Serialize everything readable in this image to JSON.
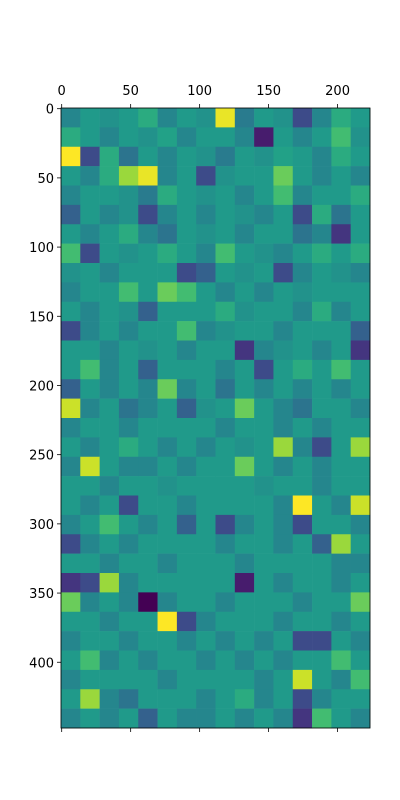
{
  "chart_data": {
    "type": "heatmap",
    "cmap": "viridis",
    "xlim": [
      -0.5,
      223.5
    ],
    "ylim": [
      447.5,
      -0.5
    ],
    "xticks": [
      0,
      50,
      100,
      150,
      200
    ],
    "yticks": [
      0,
      50,
      100,
      150,
      200,
      250,
      300,
      350,
      400
    ],
    "z": [
      [
        0.45,
        0.5,
        0.48,
        0.5,
        0.55,
        0.45,
        0.5,
        0.48,
        0.78,
        0.42,
        0.5,
        0.48,
        0.3,
        0.45,
        0.55,
        0.5
      ],
      [
        0.55,
        0.5,
        0.45,
        0.5,
        0.48,
        0.52,
        0.45,
        0.5,
        0.5,
        0.45,
        0.2,
        0.5,
        0.45,
        0.5,
        0.6,
        0.48
      ],
      [
        0.8,
        0.3,
        0.55,
        0.4,
        0.5,
        0.45,
        0.5,
        0.48,
        0.42,
        0.5,
        0.48,
        0.52,
        0.5,
        0.45,
        0.55,
        0.5
      ],
      [
        0.5,
        0.45,
        0.55,
        0.7,
        0.78,
        0.45,
        0.5,
        0.3,
        0.48,
        0.5,
        0.5,
        0.65,
        0.5,
        0.45,
        0.5,
        0.45
      ],
      [
        0.45,
        0.5,
        0.5,
        0.48,
        0.42,
        0.55,
        0.5,
        0.48,
        0.5,
        0.45,
        0.5,
        0.6,
        0.45,
        0.5,
        0.5,
        0.55
      ],
      [
        0.35,
        0.5,
        0.45,
        0.48,
        0.3,
        0.45,
        0.5,
        0.45,
        0.5,
        0.48,
        0.45,
        0.5,
        0.3,
        0.55,
        0.4,
        0.5
      ],
      [
        0.5,
        0.45,
        0.5,
        0.55,
        0.45,
        0.4,
        0.5,
        0.48,
        0.5,
        0.45,
        0.5,
        0.5,
        0.4,
        0.45,
        0.25,
        0.5
      ],
      [
        0.6,
        0.3,
        0.5,
        0.48,
        0.5,
        0.55,
        0.5,
        0.45,
        0.6,
        0.5,
        0.48,
        0.45,
        0.5,
        0.55,
        0.5,
        0.55
      ],
      [
        0.48,
        0.5,
        0.45,
        0.5,
        0.5,
        0.5,
        0.3,
        0.35,
        0.5,
        0.48,
        0.5,
        0.3,
        0.45,
        0.5,
        0.48,
        0.45
      ],
      [
        0.45,
        0.5,
        0.5,
        0.6,
        0.5,
        0.65,
        0.6,
        0.5,
        0.45,
        0.5,
        0.45,
        0.5,
        0.48,
        0.5,
        0.5,
        0.5
      ],
      [
        0.5,
        0.45,
        0.5,
        0.48,
        0.35,
        0.5,
        0.5,
        0.5,
        0.55,
        0.48,
        0.5,
        0.5,
        0.45,
        0.55,
        0.45,
        0.5
      ],
      [
        0.3,
        0.45,
        0.5,
        0.45,
        0.5,
        0.5,
        0.6,
        0.45,
        0.48,
        0.5,
        0.5,
        0.45,
        0.5,
        0.5,
        0.5,
        0.35
      ],
      [
        0.5,
        0.5,
        0.45,
        0.5,
        0.48,
        0.5,
        0.45,
        0.5,
        0.5,
        0.25,
        0.45,
        0.48,
        0.5,
        0.45,
        0.5,
        0.25
      ],
      [
        0.5,
        0.6,
        0.45,
        0.5,
        0.35,
        0.5,
        0.5,
        0.5,
        0.45,
        0.5,
        0.3,
        0.5,
        0.55,
        0.5,
        0.6,
        0.5
      ],
      [
        0.35,
        0.5,
        0.45,
        0.5,
        0.45,
        0.65,
        0.45,
        0.5,
        0.4,
        0.5,
        0.45,
        0.5,
        0.45,
        0.5,
        0.45,
        0.5
      ],
      [
        0.75,
        0.45,
        0.5,
        0.4,
        0.45,
        0.5,
        0.35,
        0.48,
        0.5,
        0.65,
        0.5,
        0.45,
        0.4,
        0.5,
        0.5,
        0.45
      ],
      [
        0.45,
        0.5,
        0.5,
        0.45,
        0.5,
        0.5,
        0.5,
        0.5,
        0.45,
        0.5,
        0.5,
        0.45,
        0.5,
        0.45,
        0.5,
        0.5
      ],
      [
        0.5,
        0.45,
        0.5,
        0.55,
        0.5,
        0.45,
        0.5,
        0.45,
        0.5,
        0.48,
        0.5,
        0.7,
        0.45,
        0.3,
        0.5,
        0.7
      ],
      [
        0.45,
        0.75,
        0.5,
        0.45,
        0.45,
        0.5,
        0.45,
        0.5,
        0.5,
        0.65,
        0.5,
        0.45,
        0.5,
        0.45,
        0.5,
        0.5
      ],
      [
        0.5,
        0.5,
        0.45,
        0.5,
        0.5,
        0.48,
        0.5,
        0.5,
        0.5,
        0.5,
        0.48,
        0.5,
        0.5,
        0.45,
        0.5,
        0.5
      ],
      [
        0.5,
        0.45,
        0.5,
        0.3,
        0.5,
        0.5,
        0.45,
        0.5,
        0.5,
        0.5,
        0.5,
        0.45,
        0.8,
        0.5,
        0.45,
        0.75
      ],
      [
        0.45,
        0.5,
        0.6,
        0.5,
        0.45,
        0.5,
        0.35,
        0.5,
        0.3,
        0.45,
        0.5,
        0.45,
        0.3,
        0.5,
        0.5,
        0.45
      ],
      [
        0.3,
        0.45,
        0.5,
        0.45,
        0.5,
        0.5,
        0.5,
        0.5,
        0.45,
        0.5,
        0.5,
        0.45,
        0.5,
        0.35,
        0.7,
        0.5
      ],
      [
        0.5,
        0.5,
        0.45,
        0.5,
        0.5,
        0.45,
        0.5,
        0.5,
        0.5,
        0.45,
        0.5,
        0.5,
        0.5,
        0.5,
        0.45,
        0.45
      ],
      [
        0.25,
        0.3,
        0.7,
        0.45,
        0.5,
        0.5,
        0.5,
        0.5,
        0.5,
        0.2,
        0.5,
        0.45,
        0.5,
        0.5,
        0.45,
        0.5
      ],
      [
        0.65,
        0.45,
        0.5,
        0.45,
        0.15,
        0.45,
        0.5,
        0.5,
        0.45,
        0.5,
        0.5,
        0.5,
        0.45,
        0.5,
        0.5,
        0.65
      ],
      [
        0.5,
        0.5,
        0.45,
        0.5,
        0.5,
        0.8,
        0.3,
        0.45,
        0.5,
        0.5,
        0.5,
        0.45,
        0.5,
        0.5,
        0.45,
        0.5
      ],
      [
        0.45,
        0.5,
        0.5,
        0.45,
        0.5,
        0.5,
        0.45,
        0.5,
        0.45,
        0.5,
        0.45,
        0.5,
        0.3,
        0.3,
        0.5,
        0.45
      ],
      [
        0.5,
        0.6,
        0.45,
        0.5,
        0.45,
        0.5,
        0.5,
        0.45,
        0.5,
        0.45,
        0.5,
        0.45,
        0.5,
        0.5,
        0.6,
        0.5
      ],
      [
        0.45,
        0.5,
        0.5,
        0.5,
        0.5,
        0.45,
        0.5,
        0.5,
        0.5,
        0.5,
        0.45,
        0.5,
        0.75,
        0.5,
        0.45,
        0.6
      ],
      [
        0.5,
        0.7,
        0.45,
        0.4,
        0.5,
        0.5,
        0.5,
        0.45,
        0.5,
        0.55,
        0.45,
        0.5,
        0.3,
        0.45,
        0.5,
        0.5
      ],
      [
        0.45,
        0.5,
        0.45,
        0.5,
        0.35,
        0.5,
        0.45,
        0.45,
        0.5,
        0.45,
        0.5,
        0.45,
        0.25,
        0.6,
        0.5,
        0.45
      ]
    ]
  }
}
